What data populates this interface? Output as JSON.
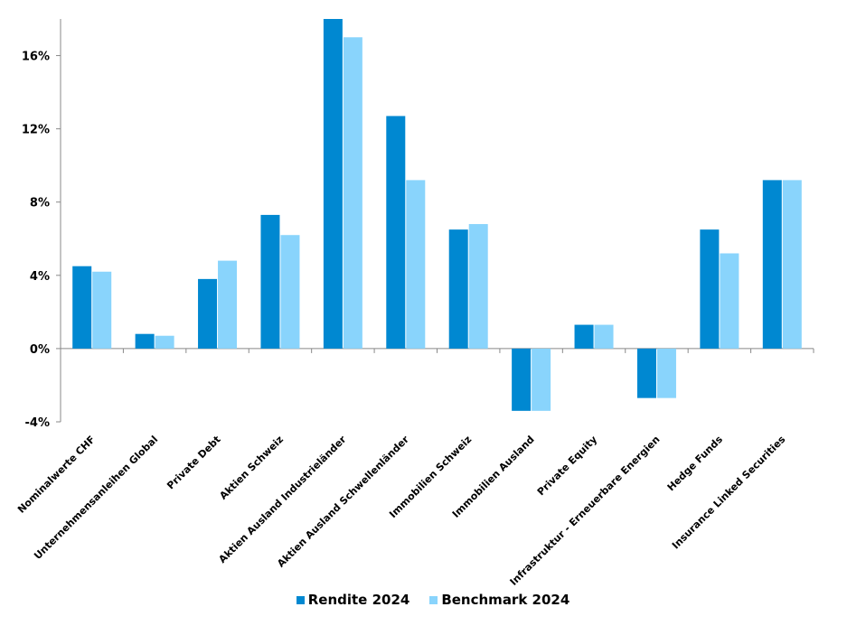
{
  "chart_data": {
    "type": "bar",
    "categories": [
      "Nominalwerte CHF",
      "Unternehmensanleihen Global",
      "Private Debt",
      "Aktien Schweiz",
      "Aktien Ausland Industrieländer",
      "Aktien Ausland Schwellenländer",
      "Immobilien Schweiz",
      "Immobilien Ausland",
      "Private Equity",
      "Infrastruktur - Erneuerbare Energien",
      "Hedge Funds",
      "Insurance Linked Securities"
    ],
    "series": [
      {
        "name": "Rendite 2024",
        "color": "#0088d1",
        "values": [
          4.5,
          0.8,
          3.8,
          7.3,
          18.0,
          12.7,
          6.5,
          -3.4,
          1.3,
          -2.7,
          6.5,
          9.2
        ]
      },
      {
        "name": "Benchmark 2024",
        "color": "#89d4fc",
        "values": [
          4.2,
          0.7,
          4.8,
          6.2,
          17.0,
          9.2,
          6.8,
          -3.4,
          1.3,
          -2.7,
          5.2,
          9.2
        ]
      }
    ],
    "yticks": [
      "-4%",
      "0%",
      "4%",
      "8%",
      "12%",
      "16%"
    ],
    "ytick_values": [
      -4,
      0,
      4,
      8,
      12,
      16
    ],
    "ylim": [
      -4,
      18
    ],
    "grid": false,
    "legend_position": "bottom"
  }
}
